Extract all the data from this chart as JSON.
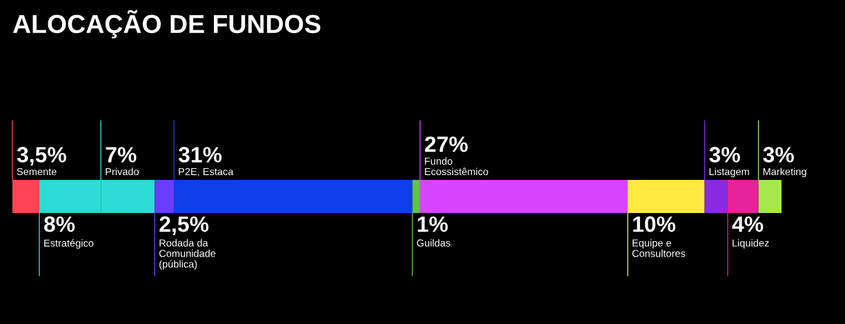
{
  "chart_data": {
    "type": "bar",
    "title": "ALOCAÇÃO DE FUNDOS",
    "orientation": "horizontal",
    "stacked": true,
    "categories": [
      null
    ],
    "xlim": [
      0,
      100
    ],
    "tick_labels": false,
    "legend": false,
    "series": [
      {
        "name": "Semente",
        "color": "#ff4553",
        "values": [
          3.5
        ],
        "value_labels": [
          "3,5%"
        ]
      },
      {
        "name": "Estratégico",
        "color": "#2ddbd6",
        "values": [
          8
        ],
        "value_labels": [
          "8%"
        ]
      },
      {
        "name": "Privado",
        "color": "#2ddbd6",
        "values": [
          7
        ],
        "value_labels": [
          "7%"
        ]
      },
      {
        "name": "Rodada da\nComunidade\n(pública)",
        "color": "#6a3cff",
        "values": [
          2.5
        ],
        "value_labels": [
          "2,5%"
        ]
      },
      {
        "name": "P2E, Estaca",
        "color": "#0d3fea",
        "values": [
          31
        ],
        "value_labels": [
          "31%"
        ]
      },
      {
        "name": "Guildas",
        "color": "#5ec640",
        "values": [
          1
        ],
        "value_labels": [
          "1%"
        ]
      },
      {
        "name": "Fundo\nEcossistêmico",
        "color": "#d845ff",
        "values": [
          27
        ],
        "value_labels": [
          "27%"
        ]
      },
      {
        "name": "Equipe e\nConsultores",
        "color": "#ffe83f",
        "values": [
          10
        ],
        "value_labels": [
          "10%"
        ]
      },
      {
        "name": "Listagem",
        "color": "#8a2be2",
        "values": [
          3
        ],
        "value_labels": [
          "3%"
        ]
      },
      {
        "name": "Liquidez",
        "color": "#e8229a",
        "values": [
          4
        ],
        "value_labels": [
          "4%"
        ]
      },
      {
        "name": "Marketing",
        "color": "#a6e84a",
        "values": [
          3
        ],
        "value_labels": [
          "3%"
        ]
      }
    ]
  }
}
